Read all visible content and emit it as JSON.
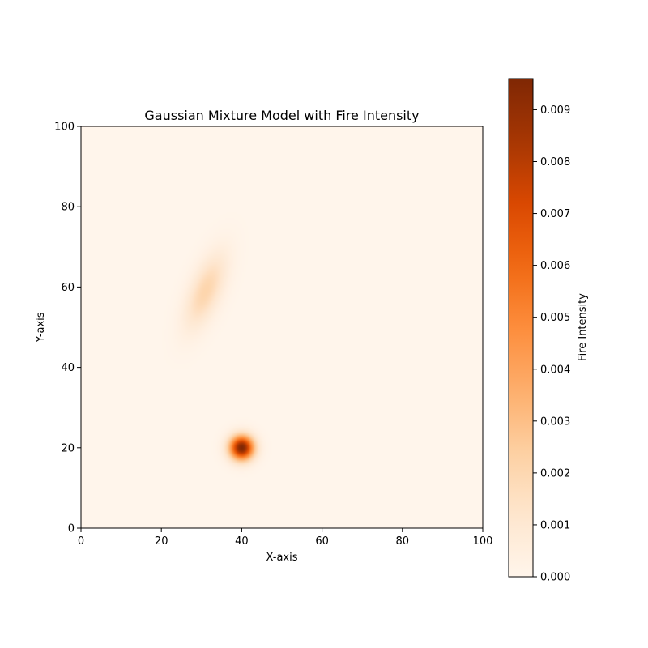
{
  "chart_data": {
    "type": "heatmap",
    "title": "Gaussian Mixture Model with Fire Intensity",
    "xlabel": "X-axis",
    "ylabel": "Y-axis",
    "xlim": [
      0,
      100
    ],
    "ylim": [
      0,
      100
    ],
    "x_ticks": [
      0,
      20,
      40,
      60,
      80,
      100
    ],
    "y_ticks": [
      0,
      20,
      40,
      60,
      80,
      100
    ],
    "colormap": "Oranges",
    "colorbar": {
      "label": "Fire Intensity",
      "range": [
        0,
        0.0096
      ],
      "ticks": [
        "0.000",
        "0.001",
        "0.002",
        "0.003",
        "0.004",
        "0.005",
        "0.006",
        "0.007",
        "0.008",
        "0.009"
      ]
    },
    "components": [
      {
        "mean": [
          40,
          20
        ],
        "sigma_x": 2.1,
        "sigma_y": 2.1,
        "rotation_deg": 0,
        "peak": 0.0096
      },
      {
        "mean": [
          31,
          59
        ],
        "sigma_x": 2.6,
        "sigma_y": 6.8,
        "rotation_deg": -22,
        "peak": 0.0021
      }
    ],
    "grid": false
  }
}
